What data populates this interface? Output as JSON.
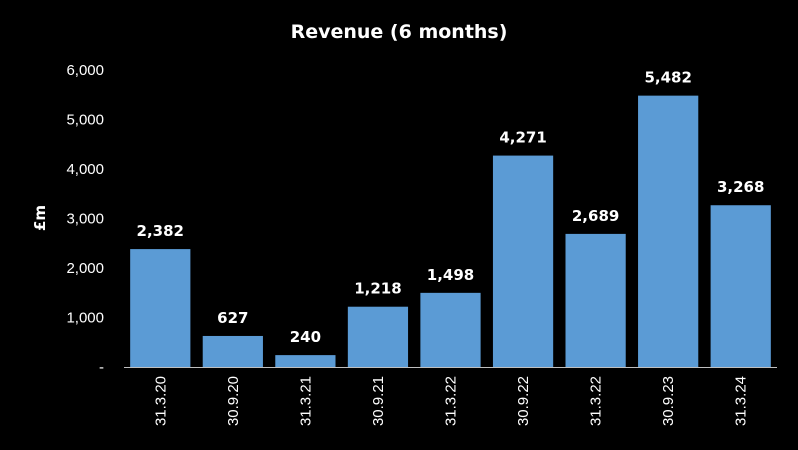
{
  "colors": {
    "background": "#000000",
    "bar": "#5b9bd5",
    "text": "#ffffff",
    "axis": "#bfbfbf"
  },
  "chart_data": {
    "type": "bar",
    "title": "Revenue (6 months)",
    "xlabel": "",
    "ylabel": "£m",
    "categories": [
      "31.3.20",
      "30.9.20",
      "31.3.21",
      "30.9.21",
      "31.3.22",
      "30.9.22",
      "31.3.22",
      "30.9.23",
      "31.3.24"
    ],
    "values": [
      2382,
      627,
      240,
      1218,
      1498,
      4271,
      2689,
      5482,
      3268
    ],
    "data_labels": [
      "2,382",
      "627",
      "240",
      "1,218",
      "1,498",
      "4,271",
      "2,689",
      "5,482",
      "3,268"
    ],
    "ylim": [
      0,
      6000
    ],
    "yticks": [
      0,
      1000,
      2000,
      3000,
      4000,
      5000,
      6000
    ],
    "ytick_labels": [
      "-",
      "1,000",
      "2,000",
      "3,000",
      "4,000",
      "5,000",
      "6,000"
    ],
    "grid": false,
    "legend": "none"
  }
}
